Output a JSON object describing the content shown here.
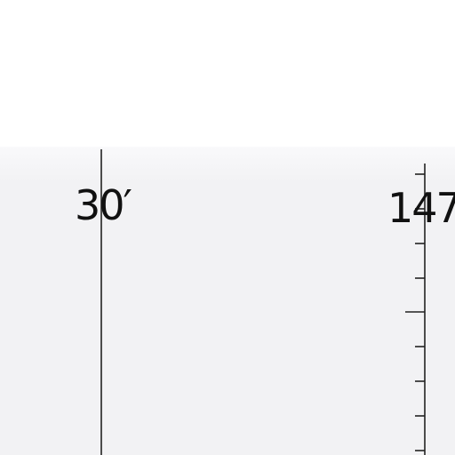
{
  "map": {
    "line_color": "#222222",
    "panel_color": "#f2f2f4",
    "labels": {
      "left_meridian": "30′",
      "right_meridian": "147"
    }
  }
}
